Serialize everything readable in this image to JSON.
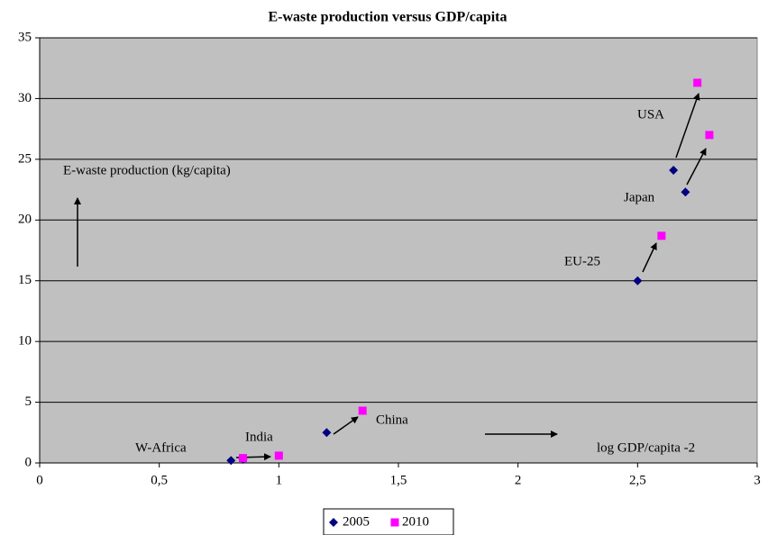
{
  "chart_data": {
    "type": "scatter",
    "title": "E-waste production versus GDP/capita",
    "xlim": [
      0,
      3
    ],
    "xticks": [
      0,
      {
        "value": 0.5,
        "label": "0,5"
      },
      1,
      {
        "value": 1.5,
        "label": "1,5"
      },
      2,
      {
        "value": 2.5,
        "label": "2,5"
      },
      3
    ],
    "ylim": [
      0,
      35
    ],
    "yticks": [
      0,
      5,
      10,
      15,
      20,
      25,
      30,
      35
    ],
    "grid": true,
    "legend": "bottom",
    "series": [
      {
        "name": "2005",
        "color": "#000080",
        "marker": "diamond",
        "x": [
          0.8,
          0.85,
          1.2,
          2.5,
          2.7,
          2.65
        ],
        "values": [
          0.2,
          0.3,
          2.5,
          15,
          22.3,
          24.1
        ]
      },
      {
        "name": "2010",
        "color": "#ff00ff",
        "marker": "square",
        "x": [
          0.85,
          1.0,
          1.35,
          2.6,
          2.8,
          2.75
        ],
        "values": [
          0.4,
          0.6,
          4.3,
          18.7,
          27,
          31.3
        ]
      }
    ],
    "annotations": [
      "USA",
      "Japan",
      "EU-25",
      "China",
      "India",
      "W-Africa",
      "E-waste production (kg/capita)",
      "log GDP/capita -2"
    ]
  }
}
